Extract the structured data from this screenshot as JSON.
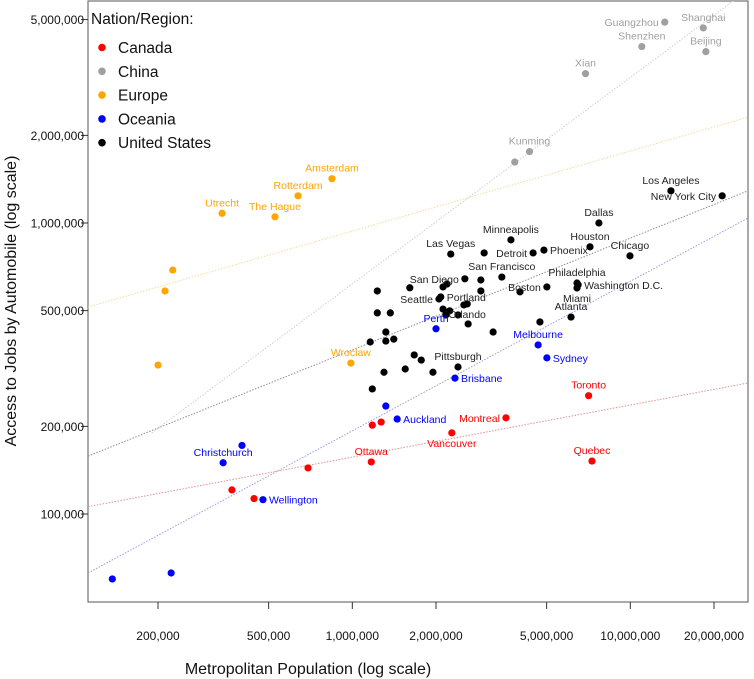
{
  "chart_data": {
    "type": "scatter",
    "title": "",
    "xlabel": "Metropolitan Population (log scale)",
    "ylabel": "Access to Jobs by Automobile (log scale)",
    "x_scale": "log",
    "y_scale": "log",
    "xlim": [
      112000,
      26500000
    ],
    "ylim": [
      55000,
      5800000
    ],
    "grid": false,
    "legend": {
      "title": "Nation/Region:",
      "placement": "top-left"
    },
    "x_ticks": [
      {
        "value": 200000,
        "label": "200,000"
      },
      {
        "value": 500000,
        "label": "500,000"
      },
      {
        "value": 1000000,
        "label": "1,000,000"
      },
      {
        "value": 2000000,
        "label": "2,000,000"
      },
      {
        "value": 5000000,
        "label": "5,000,000"
      },
      {
        "value": 10000000,
        "label": "10,000,000"
      },
      {
        "value": 20000000,
        "label": "20,000,000"
      }
    ],
    "y_ticks": [
      {
        "value": 100000,
        "label": "100,000"
      },
      {
        "value": 200000,
        "label": "200,000"
      },
      {
        "value": 500000,
        "label": "500,000"
      },
      {
        "value": 1000000,
        "label": "1,000,000"
      },
      {
        "value": 2000000,
        "label": "2,000,000"
      },
      {
        "value": 5000000,
        "label": "5,000,000"
      }
    ],
    "series": [
      {
        "name": "Canada",
        "color": "#ff0000",
        "trend_color": "#e09090",
        "trend_line": [
          [
            112000,
            106000
          ],
          [
            26500000,
            282000
          ]
        ],
        "points": [
          {
            "x": 7080000,
            "y": 255000,
            "label": "Toronto",
            "label_pos": "above"
          },
          {
            "x": 7280000,
            "y": 152000,
            "label": "Quebec",
            "label_pos": "above"
          },
          {
            "x": 3570000,
            "y": 214000,
            "label": "Montreal",
            "label_pos": "left"
          },
          {
            "x": 2280000,
            "y": 190000,
            "label": "Vancouver",
            "label_pos": "above"
          },
          {
            "x": 1170000,
            "y": 151000,
            "label": "Ottawa",
            "label_pos": "above"
          },
          {
            "x": 1180000,
            "y": 202000
          },
          {
            "x": 1270000,
            "y": 207000
          },
          {
            "x": 693000,
            "y": 144000
          },
          {
            "x": 443000,
            "y": 113000
          },
          {
            "x": 369000,
            "y": 121000
          }
        ]
      },
      {
        "name": "China",
        "color": "#a0a0a0",
        "trend_color": "#d0d0d0",
        "trend_line": [
          [
            190000,
            190000
          ],
          [
            26500000,
            6320000
          ]
        ],
        "points": [
          {
            "x": 13300000,
            "y": 4900000,
            "label": "Guangzhou",
            "label_pos": "above"
          },
          {
            "x": 18300000,
            "y": 4680000,
            "label": "Shanghai",
            "label_pos": "above"
          },
          {
            "x": 11000000,
            "y": 4040000,
            "label": "Shenzhen",
            "label_pos": "above"
          },
          {
            "x": 18700000,
            "y": 3880000,
            "label": "Beijing",
            "label_pos": "above"
          },
          {
            "x": 6900000,
            "y": 3260000,
            "label": "Xian",
            "label_pos": "above"
          },
          {
            "x": 4340000,
            "y": 1760000,
            "label": "Kunming",
            "label_pos": "above"
          },
          {
            "x": 3840000,
            "y": 1620000
          }
        ]
      },
      {
        "name": "Europe",
        "color": "#ffa500",
        "trend_color": "#f2dc9a",
        "trend_line": [
          [
            112000,
            514000
          ],
          [
            26500000,
            2310000
          ]
        ],
        "points": [
          {
            "x": 845000,
            "y": 1420000,
            "label": "Amsterdam",
            "label_pos": "above"
          },
          {
            "x": 638000,
            "y": 1240000,
            "label": "Rotterdam",
            "label_pos": "above"
          },
          {
            "x": 340000,
            "y": 1080000,
            "label": "Utrecht",
            "label_pos": "above"
          },
          {
            "x": 527000,
            "y": 1050000,
            "label": "The Hague",
            "label_pos": "above"
          },
          {
            "x": 988000,
            "y": 330000,
            "label": "Wroclaw",
            "label_pos": "above"
          },
          {
            "x": 226000,
            "y": 689000
          },
          {
            "x": 212000,
            "y": 584000
          },
          {
            "x": 200000,
            "y": 325000
          }
        ]
      },
      {
        "name": "Oceania",
        "color": "#0000ff",
        "trend_color": "#9a9ae6",
        "trend_line": [
          [
            112000,
            62700
          ],
          [
            26500000,
            1040000
          ]
        ],
        "points": [
          {
            "x": 2000000,
            "y": 433000,
            "label": "Perth",
            "label_pos": "above"
          },
          {
            "x": 4660000,
            "y": 381000,
            "label": "Melbourne",
            "label_pos": "above"
          },
          {
            "x": 5010000,
            "y": 344000,
            "label": "Sydney",
            "label_pos": "right"
          },
          {
            "x": 2340000,
            "y": 293000,
            "label": "Brisbane",
            "label_pos": "right"
          },
          {
            "x": 1450000,
            "y": 212000,
            "label": "Auckland",
            "label_pos": "right"
          },
          {
            "x": 1320000,
            "y": 235000
          },
          {
            "x": 343000,
            "y": 150000,
            "label": "Christchurch",
            "label_pos": "above"
          },
          {
            "x": 401000,
            "y": 172000
          },
          {
            "x": 477000,
            "y": 112000,
            "label": "Wellington",
            "label_pos": "right"
          },
          {
            "x": 137000,
            "y": 59800
          },
          {
            "x": 223000,
            "y": 62700
          }
        ]
      },
      {
        "name": "United States",
        "color": "#000000",
        "trend_color": "#8c8ca0",
        "trend_line": [
          [
            112000,
            158000
          ],
          [
            26500000,
            1290000
          ]
        ],
        "points": [
          {
            "x": 14000000,
            "y": 1290000,
            "label": "Los Angeles",
            "label_pos": "above"
          },
          {
            "x": 21400000,
            "y": 1240000,
            "label": "New York City",
            "label_pos": "above"
          },
          {
            "x": 7710000,
            "y": 1000000,
            "label": "Dallas",
            "label_pos": "above"
          },
          {
            "x": 7160000,
            "y": 828000,
            "label": "Houston",
            "label_pos": "above"
          },
          {
            "x": 9970000,
            "y": 771000,
            "label": "Chicago",
            "label_pos": "above"
          },
          {
            "x": 3720000,
            "y": 875000,
            "label": "Minneapolis",
            "label_pos": "above"
          },
          {
            "x": 4470000,
            "y": 789000,
            "label": "Detroit",
            "label_pos": "left"
          },
          {
            "x": 4890000,
            "y": 807000,
            "label": "Phoenix",
            "label_pos": "right"
          },
          {
            "x": 2260000,
            "y": 782000,
            "label": "Las Vegas",
            "label_pos": "above"
          },
          {
            "x": 2980000,
            "y": 789000
          },
          {
            "x": 2540000,
            "y": 643000,
            "label": "San Diego",
            "label_pos": "above"
          },
          {
            "x": 2900000,
            "y": 637000
          },
          {
            "x": 3450000,
            "y": 652000,
            "label": "San Francisco",
            "label_pos": "above"
          },
          {
            "x": 2120000,
            "y": 603000
          },
          {
            "x": 2190000,
            "y": 617000
          },
          {
            "x": 1610000,
            "y": 599000
          },
          {
            "x": 1230000,
            "y": 584000
          },
          {
            "x": 2900000,
            "y": 584000
          },
          {
            "x": 4010000,
            "y": 580000
          },
          {
            "x": 5010000,
            "y": 603000,
            "label": "Boston",
            "label_pos": "above"
          },
          {
            "x": 6430000,
            "y": 622000,
            "label": "Philadelphia",
            "label_pos": "above"
          },
          {
            "x": 6490000,
            "y": 613000,
            "label": "Washington D.C.",
            "label_pos": "right"
          },
          {
            "x": 6430000,
            "y": 598000,
            "label": "Miami",
            "label_pos": "below"
          },
          {
            "x": 2050000,
            "y": 548000,
            "label": "Seattle",
            "label_pos": "left"
          },
          {
            "x": 2080000,
            "y": 557000,
            "label": "Portland",
            "label_pos": "right"
          },
          {
            "x": 2520000,
            "y": 523000
          },
          {
            "x": 2590000,
            "y": 527000,
            "label": "Orlando",
            "label_pos": "right"
          },
          {
            "x": 2120000,
            "y": 506000
          },
          {
            "x": 2240000,
            "y": 499000
          },
          {
            "x": 2170000,
            "y": 483000
          },
          {
            "x": 2400000,
            "y": 483000
          },
          {
            "x": 2610000,
            "y": 450000
          },
          {
            "x": 6120000,
            "y": 475000,
            "label": "Atlanta",
            "label_pos": "above"
          },
          {
            "x": 4730000,
            "y": 457000
          },
          {
            "x": 3210000,
            "y": 422000
          },
          {
            "x": 1230000,
            "y": 491000
          },
          {
            "x": 1370000,
            "y": 491000
          },
          {
            "x": 1320000,
            "y": 422000
          },
          {
            "x": 1320000,
            "y": 393000
          },
          {
            "x": 1410000,
            "y": 399000
          },
          {
            "x": 1160000,
            "y": 390000
          },
          {
            "x": 2400000,
            "y": 320000,
            "label": "Pittsburgh",
            "label_pos": "above"
          },
          {
            "x": 1670000,
            "y": 352000
          },
          {
            "x": 1770000,
            "y": 338000
          },
          {
            "x": 1550000,
            "y": 315000
          },
          {
            "x": 1300000,
            "y": 307000
          },
          {
            "x": 1950000,
            "y": 307000
          },
          {
            "x": 1180000,
            "y": 269000
          }
        ]
      }
    ]
  }
}
